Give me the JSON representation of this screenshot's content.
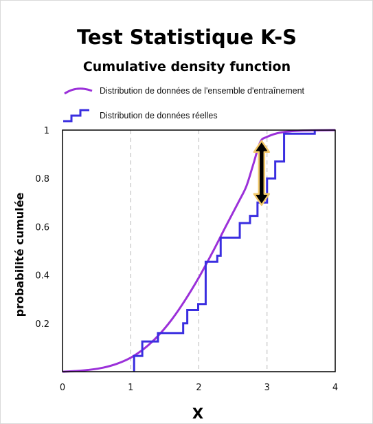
{
  "chart_data": {
    "type": "line",
    "title": "Test Statistique K-S",
    "subtitle": "Cumulative density function",
    "xlabel": "X",
    "ylabel": "probabilité cumulée",
    "xlim": [
      0,
      4
    ],
    "ylim": [
      0,
      1
    ],
    "x_ticks": [
      "0",
      "1",
      "2",
      "3",
      "4"
    ],
    "y_ticks": [
      "0.2",
      "0.4",
      "0.6",
      "0.8",
      "1"
    ],
    "grid": "vertical dashed at x = 1, 2, 3",
    "legend_placement": "top",
    "series": [
      {
        "name": "Distribution de données de l'ensemble d'entraînement",
        "style": "smooth",
        "color": "#9b30d9",
        "points": [
          [
            0,
            0.0
          ],
          [
            0.2,
            0.003
          ],
          [
            0.4,
            0.008
          ],
          [
            0.6,
            0.017
          ],
          [
            0.8,
            0.033
          ],
          [
            1.0,
            0.058
          ],
          [
            1.2,
            0.096
          ],
          [
            1.4,
            0.148
          ],
          [
            1.6,
            0.215
          ],
          [
            1.8,
            0.297
          ],
          [
            2.0,
            0.39
          ],
          [
            2.2,
            0.494
          ],
          [
            2.4,
            0.604
          ],
          [
            2.6,
            0.712
          ],
          [
            2.7,
            0.77
          ],
          [
            2.8,
            0.86
          ],
          [
            2.9,
            0.95
          ],
          [
            3.0,
            0.972
          ],
          [
            3.2,
            0.99
          ],
          [
            3.5,
            0.998
          ],
          [
            4.0,
            1.0
          ]
        ]
      },
      {
        "name": "Distribution de données réelles",
        "style": "step",
        "color": "#3a2ee0",
        "steps": [
          [
            1.05,
            0.0
          ],
          [
            1.05,
            0.065
          ],
          [
            1.17,
            0.065
          ],
          [
            1.17,
            0.125
          ],
          [
            1.4,
            0.125
          ],
          [
            1.4,
            0.16
          ],
          [
            1.77,
            0.16
          ],
          [
            1.77,
            0.2
          ],
          [
            1.83,
            0.2
          ],
          [
            1.83,
            0.255
          ],
          [
            1.99,
            0.255
          ],
          [
            1.99,
            0.28
          ],
          [
            2.1,
            0.28
          ],
          [
            2.1,
            0.455
          ],
          [
            2.27,
            0.455
          ],
          [
            2.27,
            0.48
          ],
          [
            2.32,
            0.48
          ],
          [
            2.32,
            0.555
          ],
          [
            2.6,
            0.555
          ],
          [
            2.6,
            0.615
          ],
          [
            2.75,
            0.615
          ],
          [
            2.75,
            0.645
          ],
          [
            2.86,
            0.645
          ],
          [
            2.86,
            0.7
          ],
          [
            3.0,
            0.7
          ],
          [
            3.0,
            0.8
          ],
          [
            3.12,
            0.8
          ],
          [
            3.12,
            0.87
          ],
          [
            3.25,
            0.87
          ],
          [
            3.25,
            0.985
          ],
          [
            3.7,
            0.985
          ],
          [
            3.7,
            1.0
          ]
        ]
      }
    ],
    "annotation": {
      "type": "double-arrow",
      "x": 2.92,
      "y_from": 0.69,
      "y_to": 0.955,
      "color": "#000000",
      "outline": "#f2c86a"
    }
  }
}
